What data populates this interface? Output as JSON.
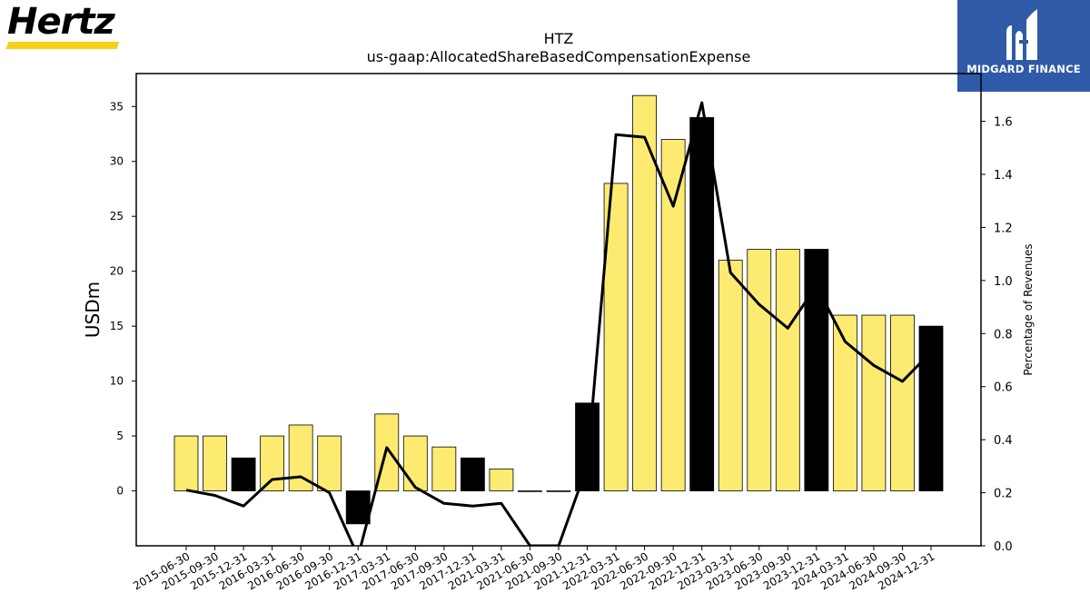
{
  "branding": {
    "company_logo_text": "Hertz",
    "publisher_name": "MIDGARD FINANCE"
  },
  "colors": {
    "bar_fill": "#fdeb71",
    "bar_fill_highlight": "#000000",
    "bar_edge": "#000000",
    "line": "#000000",
    "publisher_bg": "#2f5aa8",
    "hertz_accent": "#f7d117"
  },
  "chart_data": {
    "type": "bar",
    "title": "HTZ",
    "subtitle": "us-gaap:AllocatedShareBasedCompensationExpense",
    "xlabel": "",
    "ylabel": "USDm",
    "y2label": "Percentage of Revenues",
    "ylim": [
      -5,
      38
    ],
    "y2lim": [
      0.0,
      1.78
    ],
    "yticks": [
      0,
      5,
      10,
      15,
      20,
      25,
      30,
      35
    ],
    "y2ticks": [
      "0.0",
      "0.2",
      "0.4",
      "0.6",
      "0.8",
      "1.0",
      "1.2",
      "1.4",
      "1.6"
    ],
    "grid": false,
    "categories": [
      "2015-06-30",
      "2015-09-30",
      "2015-12-31",
      "2016-03-31",
      "2016-06-30",
      "2016-09-30",
      "2016-12-31",
      "2017-03-31",
      "2017-06-30",
      "2017-09-30",
      "2017-12-31",
      "2021-03-31",
      "2021-06-30",
      "2021-09-30",
      "2021-12-31",
      "2022-03-31",
      "2022-06-30",
      "2022-09-30",
      "2022-12-31",
      "2023-03-31",
      "2023-06-30",
      "2023-09-30",
      "2023-12-31",
      "2024-03-31",
      "2024-06-30",
      "2024-09-30",
      "2024-12-31"
    ],
    "series": [
      {
        "kind": "bar",
        "axis": "left",
        "values": [
          5,
          5,
          3,
          5,
          6,
          5,
          -3,
          7,
          5,
          4,
          3,
          2,
          0,
          0,
          8,
          28,
          36,
          32,
          34,
          21,
          22,
          22,
          22,
          16,
          16,
          16,
          15
        ],
        "highlight": [
          false,
          false,
          true,
          false,
          false,
          false,
          true,
          false,
          false,
          false,
          true,
          false,
          false,
          false,
          true,
          false,
          false,
          false,
          true,
          false,
          false,
          false,
          true,
          false,
          false,
          false,
          true
        ]
      },
      {
        "kind": "line",
        "axis": "right",
        "values": [
          0.21,
          0.19,
          0.15,
          0.25,
          0.26,
          0.2,
          -0.04,
          0.37,
          0.22,
          0.16,
          0.15,
          0.16,
          0.0,
          0.0,
          0.3,
          1.55,
          1.54,
          1.28,
          1.67,
          1.03,
          0.91,
          0.82,
          0.98,
          0.77,
          0.68,
          0.62,
          0.73
        ]
      }
    ]
  }
}
